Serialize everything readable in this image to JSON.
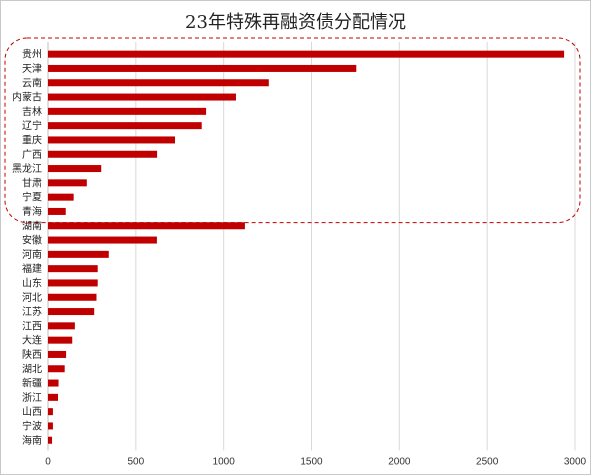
{
  "chart_data": {
    "type": "bar",
    "orientation": "horizontal",
    "title": "23年特殊再融资债分配情况",
    "xlabel": "",
    "ylabel": "",
    "xlim": [
      0,
      3000
    ],
    "x_ticks": [
      0,
      500,
      1000,
      1500,
      2000,
      2500,
      3000
    ],
    "grid": "vertical",
    "bar_color": "#c00000",
    "highlight_color": "#c00000",
    "categories": [
      "贵州",
      "天津",
      "云南",
      "内蒙古",
      "吉林",
      "辽宁",
      "重庆",
      "广西",
      "黑龙江",
      "甘肃",
      "宁夏",
      "青海",
      "湖南",
      "安徽",
      "河南",
      "福建",
      "山东",
      "河北",
      "江苏",
      "江西",
      "大连",
      "陕西",
      "湖北",
      "新疆",
      "浙江",
      "山西",
      "宁波",
      "海南"
    ],
    "values": [
      2938,
      1755,
      1257,
      1070,
      900,
      875,
      723,
      621,
      303,
      221,
      146,
      101,
      1121,
      620,
      346,
      283,
      283,
      276,
      263,
      153,
      138,
      103,
      95,
      60,
      57,
      28,
      28,
      23
    ],
    "highlight_group": [
      "贵州",
      "天津",
      "云南",
      "内蒙古",
      "吉林",
      "辽宁",
      "重庆",
      "广西",
      "黑龙江",
      "甘肃",
      "宁夏",
      "青海"
    ]
  }
}
